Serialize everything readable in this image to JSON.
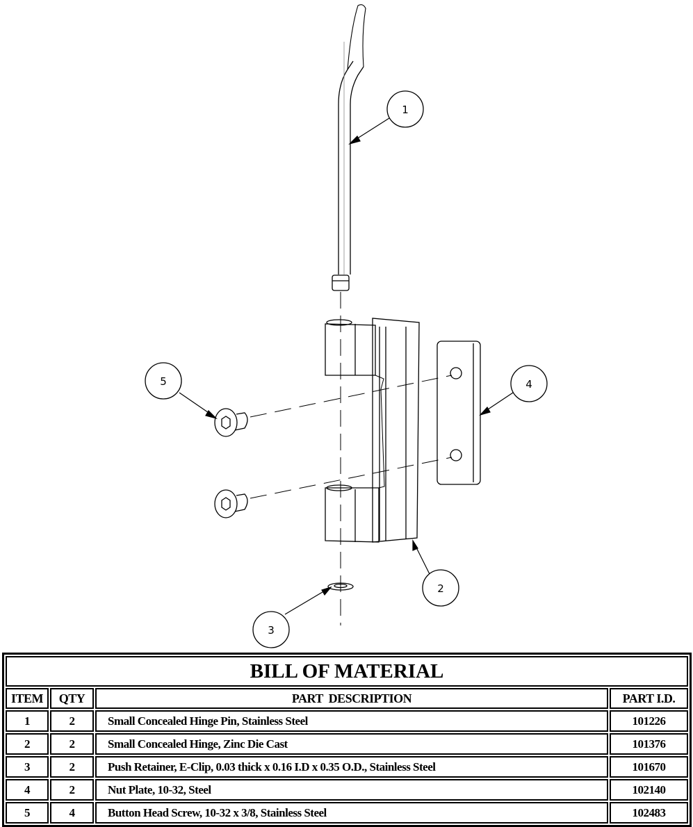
{
  "balloons": [
    "1",
    "2",
    "3",
    "4",
    "5"
  ],
  "bom": {
    "title": "BILL OF MATERIAL",
    "columns": [
      "ITEM",
      "QTY",
      "PART  DESCRIPTION",
      "PART I.D."
    ],
    "rows": [
      {
        "item": "1",
        "qty": "2",
        "description": "Small Concealed Hinge Pin, Stainless Steel",
        "part_id": "101226"
      },
      {
        "item": "2",
        "qty": "2",
        "description": "Small Concealed Hinge, Zinc Die Cast",
        "part_id": "101376"
      },
      {
        "item": "3",
        "qty": "2",
        "description": "Push Retainer, E-Clip, 0.03 thick x 0.16 I.D x 0.35 O.D., Stainless Steel",
        "part_id": "101670"
      },
      {
        "item": "4",
        "qty": "2",
        "description": "Nut Plate, 10-32, Steel",
        "part_id": "102140"
      },
      {
        "item": "5",
        "qty": "4",
        "description": "Button Head Screw, 10-32 x 3/8, Stainless Steel",
        "part_id": "102483"
      }
    ]
  }
}
